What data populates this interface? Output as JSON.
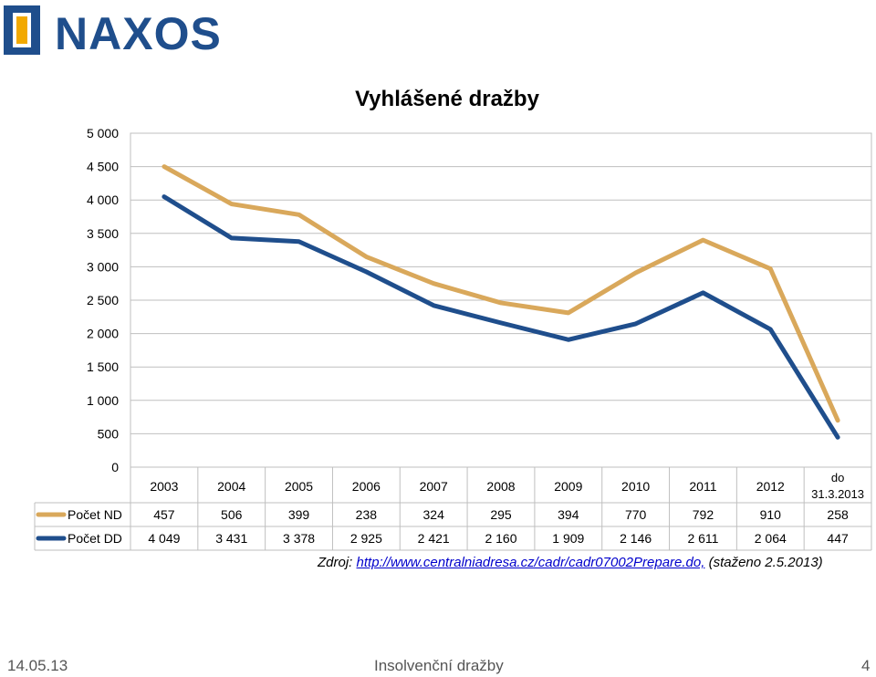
{
  "brand": {
    "name": "NAXOS",
    "color": "#1f4e8c",
    "accent": "#f2a900"
  },
  "chart_data": {
    "type": "line",
    "title": "Vyhlášené dražby",
    "categories": [
      "2003",
      "2004",
      "2005",
      "2006",
      "2007",
      "2008",
      "2009",
      "2010",
      "2011",
      "2012",
      "do 31.3.2013"
    ],
    "ylim": [
      0,
      5000
    ],
    "yticks": [
      "0",
      "500",
      "1 000",
      "1 500",
      "2 000",
      "2 500",
      "3 000",
      "3 500",
      "4 000",
      "4 500",
      "5 000"
    ],
    "grid": true,
    "legend": "data-table",
    "series": [
      {
        "name": "Počet ND",
        "color": "#d9a85b",
        "values": [
          4500,
          3940,
          3780,
          3150,
          2750,
          2460,
          2310,
          2910,
          3400,
          2970,
          700
        ],
        "table_values": [
          "457",
          "506",
          "399",
          "238",
          "324",
          "295",
          "394",
          "770",
          "792",
          "910",
          "258"
        ]
      },
      {
        "name": "Počet DD",
        "color": "#1f4e8c",
        "values": [
          4049,
          3431,
          3378,
          2925,
          2421,
          2160,
          1909,
          2146,
          2611,
          2064,
          447
        ],
        "table_values": [
          "4 049",
          "3 431",
          "3 378",
          "2 925",
          "2 421",
          "2 160",
          "1 909",
          "2 146",
          "2 611",
          "2 064",
          "447"
        ]
      }
    ]
  },
  "source": {
    "prefix": "Zdroj: ",
    "link": "http://www.centralniadresa.cz/cadr/cadr07002Prepare.do,",
    "suffix": " (staženo 2.5.2013)"
  },
  "footer": {
    "date": "14.05.13",
    "title": "Insolvenční dražby",
    "page": "4"
  }
}
